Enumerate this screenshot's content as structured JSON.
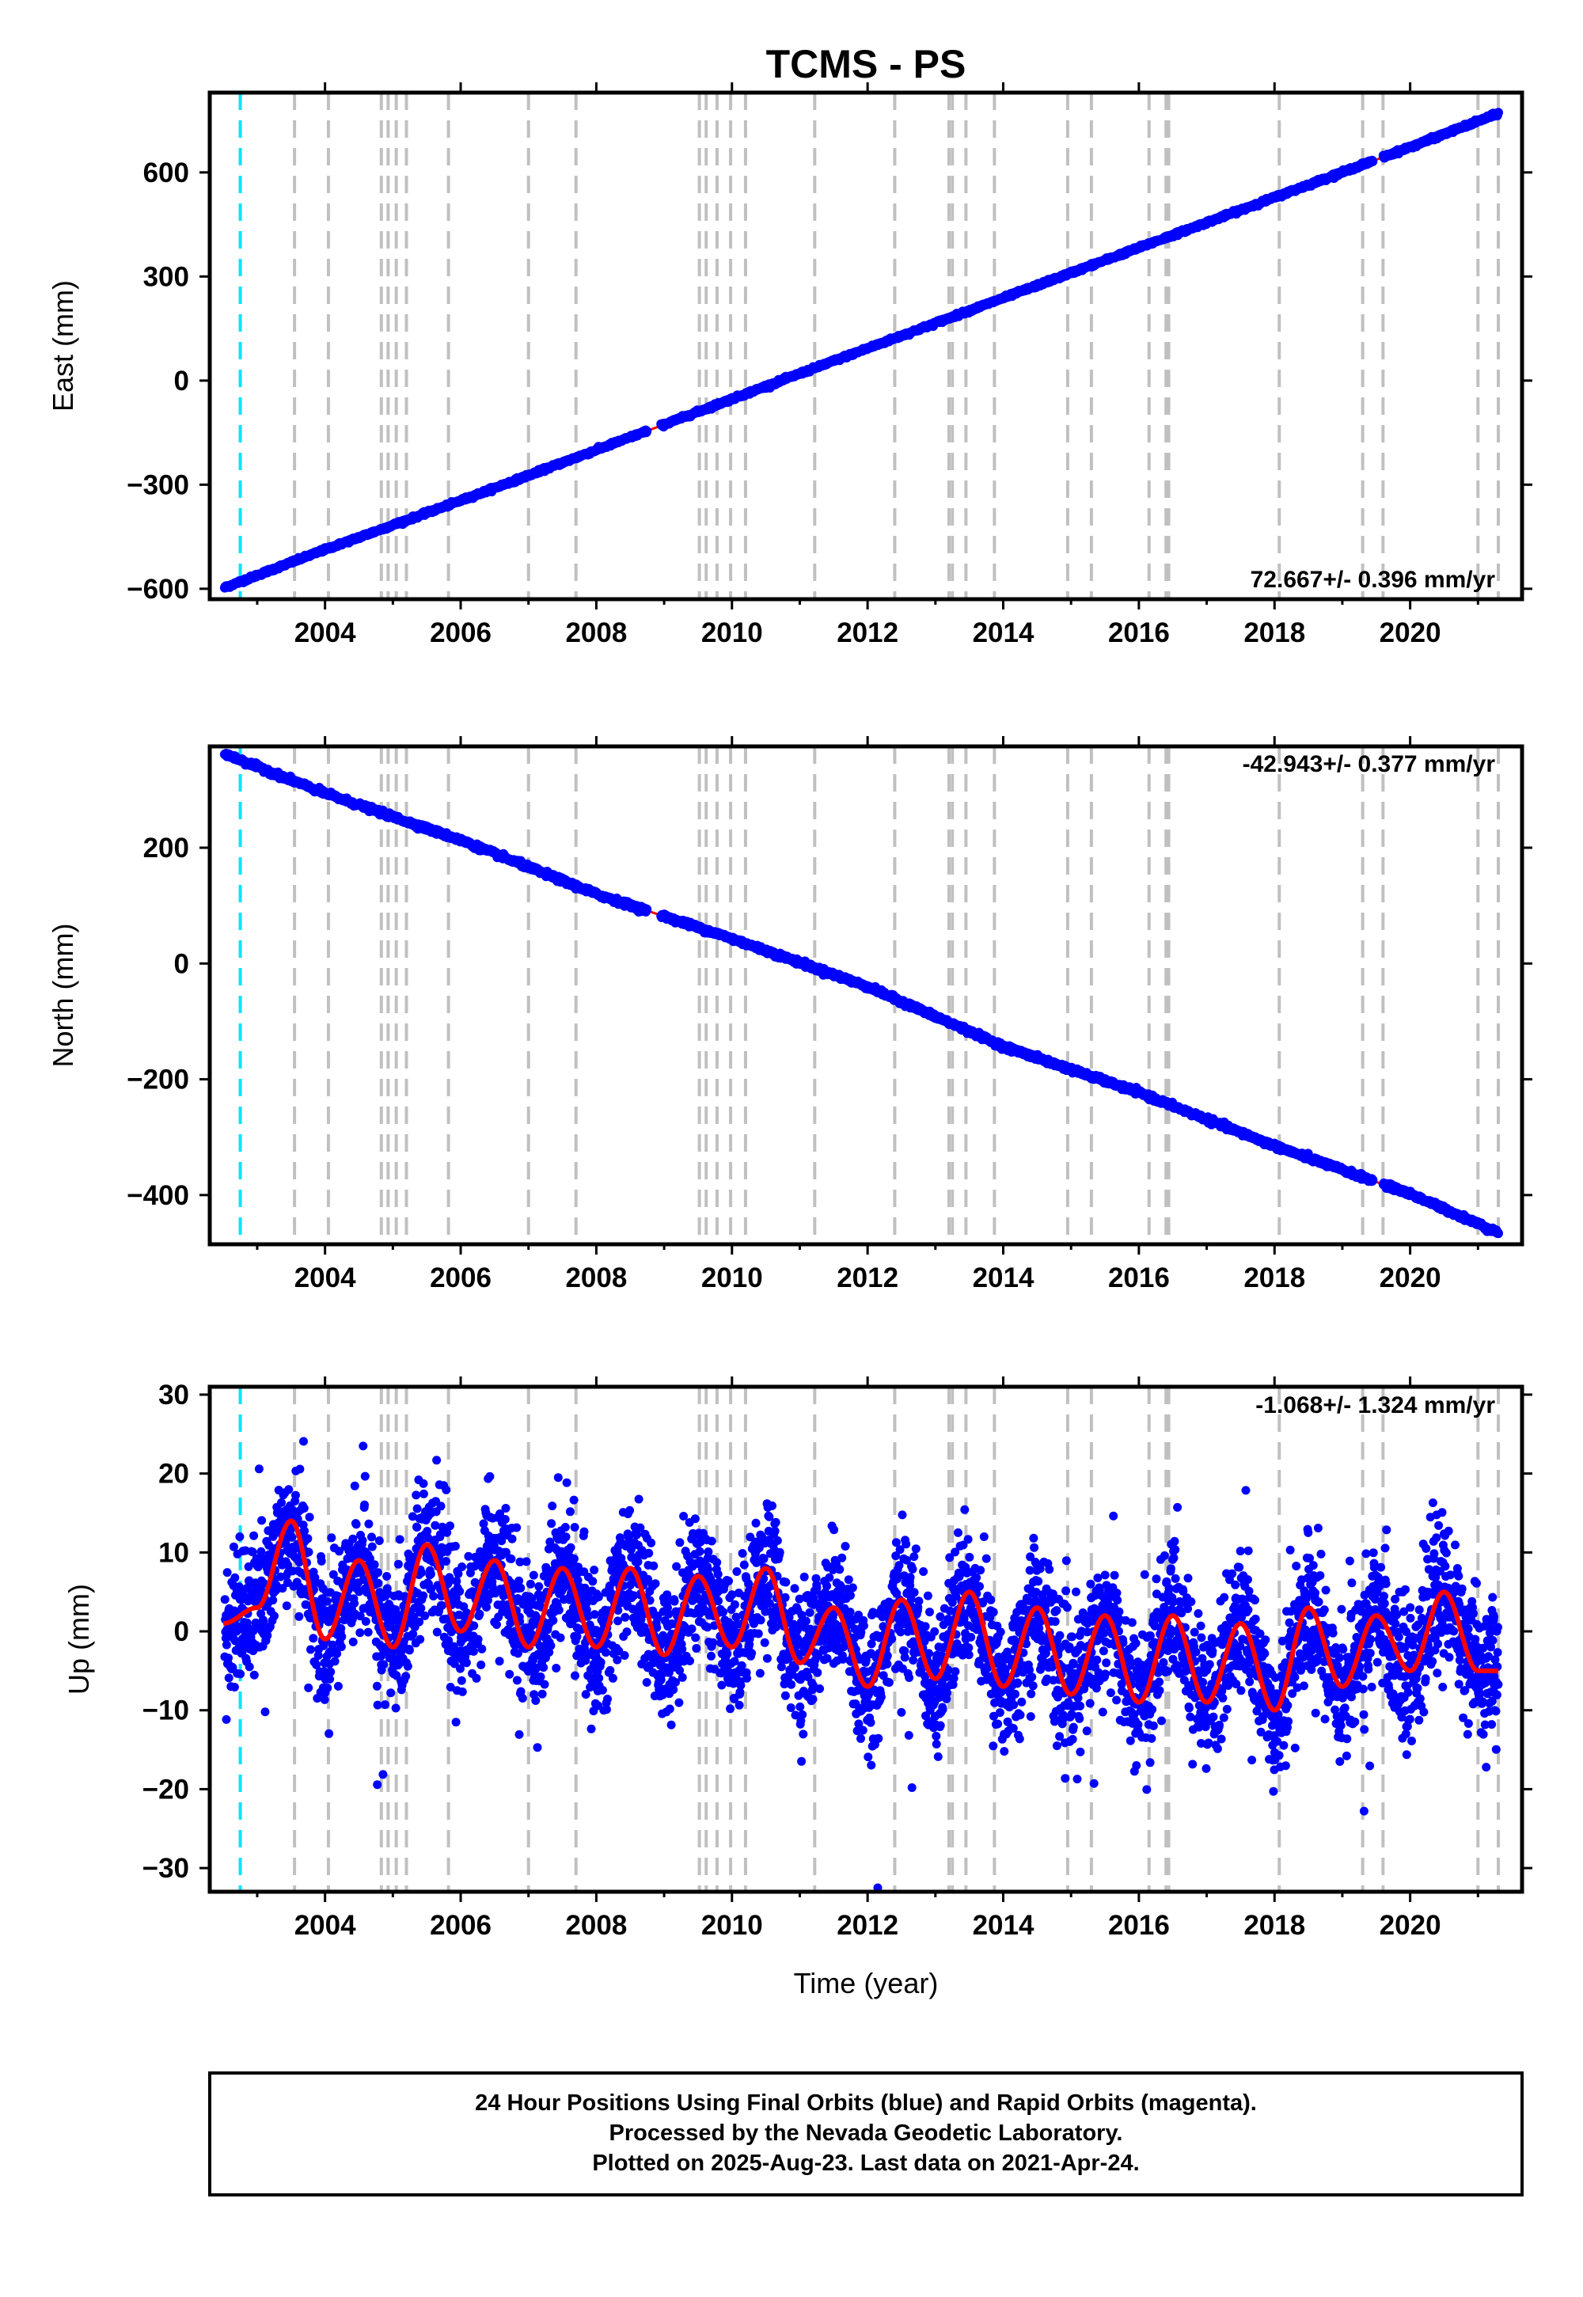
{
  "title": "TCMS - PS",
  "colors": {
    "final_orbits": "#0000ff",
    "fit": "#ff0000",
    "equipment_change": "#00e5ff",
    "event_lines": "#c0c0c0"
  },
  "chart_data": [
    {
      "type": "scatter",
      "component": "east",
      "ylabel": "East (mm)",
      "xlabel": "",
      "rate_label": "72.667+/- 0.396 mm/yr",
      "xlim": [
        2002.3,
        2021.65
      ],
      "ylim": [
        -630,
        830
      ],
      "xticks": [
        2004,
        2006,
        2008,
        2010,
        2012,
        2014,
        2016,
        2018,
        2020
      ],
      "yticks": [
        -600,
        -300,
        0,
        300,
        600
      ],
      "series": [
        {
          "x": [
            2002.5,
            2004.0,
            2006.0,
            2008.0,
            2010.0,
            2012.0,
            2014.0,
            2016.0,
            2018.0,
            2020.0,
            2021.3
          ],
          "y": [
            -598,
            -487,
            -346,
            -200,
            -53,
            93,
            238,
            383,
            528,
            673,
            770
          ]
        }
      ]
    },
    {
      "type": "scatter",
      "component": "north",
      "ylabel": "North (mm)",
      "xlabel": "",
      "rate_label": "-42.943+/- 0.377 mm/yr",
      "xlim": [
        2002.3,
        2021.65
      ],
      "ylim": [
        -485,
        375
      ],
      "xticks": [
        2004,
        2006,
        2008,
        2010,
        2012,
        2014,
        2016,
        2018,
        2020
      ],
      "yticks": [
        -400,
        -200,
        0,
        200
      ],
      "series": [
        {
          "x": [
            2002.5,
            2004.0,
            2006.0,
            2008.0,
            2010.0,
            2012.0,
            2014.0,
            2016.0,
            2018.0,
            2020.0,
            2021.3
          ],
          "y": [
            363,
            294,
            213,
            120,
            43,
            -40,
            -143,
            -223,
            -315,
            -398,
            -465
          ]
        }
      ]
    },
    {
      "type": "scatter",
      "component": "up",
      "ylabel": "Up (mm)",
      "xlabel": "Time (year)",
      "rate_label": "-1.068+/- 1.324 mm/yr",
      "xlim": [
        2002.3,
        2021.65
      ],
      "ylim": [
        -33,
        31
      ],
      "xticks": [
        2004,
        2006,
        2008,
        2010,
        2012,
        2014,
        2016,
        2018,
        2020
      ],
      "yticks": [
        -30,
        -20,
        -10,
        0,
        10,
        20,
        30
      ],
      "series": [
        {
          "x": [
            2002.5,
            2003.0,
            2003.5,
            2004.0,
            2004.5,
            2005.0,
            2005.5,
            2006.0,
            2006.5,
            2007.0,
            2007.5,
            2008.0,
            2008.5,
            2009.0,
            2009.5,
            2010.0,
            2010.5,
            2011.0,
            2011.5,
            2012.0,
            2012.5,
            2013.0,
            2013.5,
            2014.0,
            2014.5,
            2015.0,
            2015.5,
            2016.0,
            2016.5,
            2017.0,
            2017.5,
            2018.0,
            2018.5,
            2019.0,
            2019.5,
            2020.0,
            2020.5,
            2021.0
          ],
          "y": [
            1,
            3,
            14,
            -1,
            9,
            -2,
            11,
            0,
            9,
            -2,
            8,
            -2,
            8,
            -3,
            7,
            -2,
            8,
            -4,
            3,
            -7,
            4,
            -6,
            5,
            -7,
            3,
            -8,
            2,
            -9,
            2,
            -9,
            1,
            -10,
            3,
            -7,
            2,
            -5,
            5,
            -5
          ]
        }
      ]
    }
  ],
  "equipment_change_year": 2002.75,
  "event_lines": [
    2003.55,
    2004.05,
    2004.83,
    2004.93,
    2005.05,
    2005.2,
    2005.82,
    2007.0,
    2007.7,
    2009.52,
    2009.62,
    2009.78,
    2009.98,
    2010.2,
    2011.22,
    2012.4,
    2013.2,
    2013.25,
    2013.45,
    2013.87,
    2014.95,
    2015.3,
    2016.15,
    2016.4,
    2016.44,
    2018.07,
    2019.3,
    2019.6,
    2021.0,
    2021.3
  ],
  "footer": {
    "line1": "24 Hour Positions Using Final Orbits (blue) and Rapid Orbits (magenta).",
    "line2": "Processed by the Nevada Geodetic Laboratory.",
    "line3": "Plotted on 2025-Aug-23. Last data on 2021-Apr-24."
  }
}
